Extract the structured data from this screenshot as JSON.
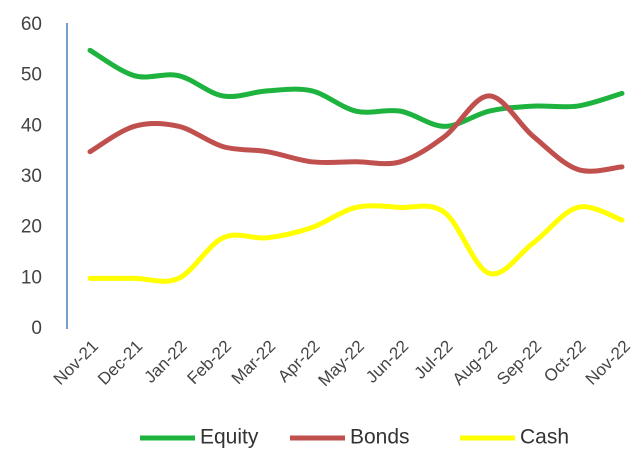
{
  "chart_data": {
    "type": "line",
    "categories": [
      "Nov-21",
      "Dec-21",
      "Jan-22",
      "Feb-22",
      "Mar-22",
      "Apr-22",
      "May-22",
      "Jun-22",
      "Jul-22",
      "Aug-22",
      "Sep-22",
      "Oct-22",
      "Nov-22"
    ],
    "series": [
      {
        "name": "Equity",
        "color": "#1db33e",
        "values": [
          55,
          50,
          50,
          46,
          47,
          47,
          43,
          43,
          40,
          43,
          44,
          44,
          46.5
        ]
      },
      {
        "name": "Bonds",
        "color": "#c0504d",
        "values": [
          35,
          40,
          40,
          36,
          35,
          33,
          33,
          33,
          38,
          46,
          38,
          31.5,
          32
        ]
      },
      {
        "name": "Cash",
        "color": "#ffff00",
        "values": [
          10,
          10,
          10,
          18,
          18,
          20,
          24,
          24,
          23,
          11,
          17,
          24,
          21.5
        ]
      }
    ],
    "ylim": [
      0,
      60
    ],
    "yticks": [
      0,
      10,
      20,
      30,
      40,
      50,
      60
    ],
    "grid": false,
    "legend": "bottom",
    "smooth": true
  }
}
